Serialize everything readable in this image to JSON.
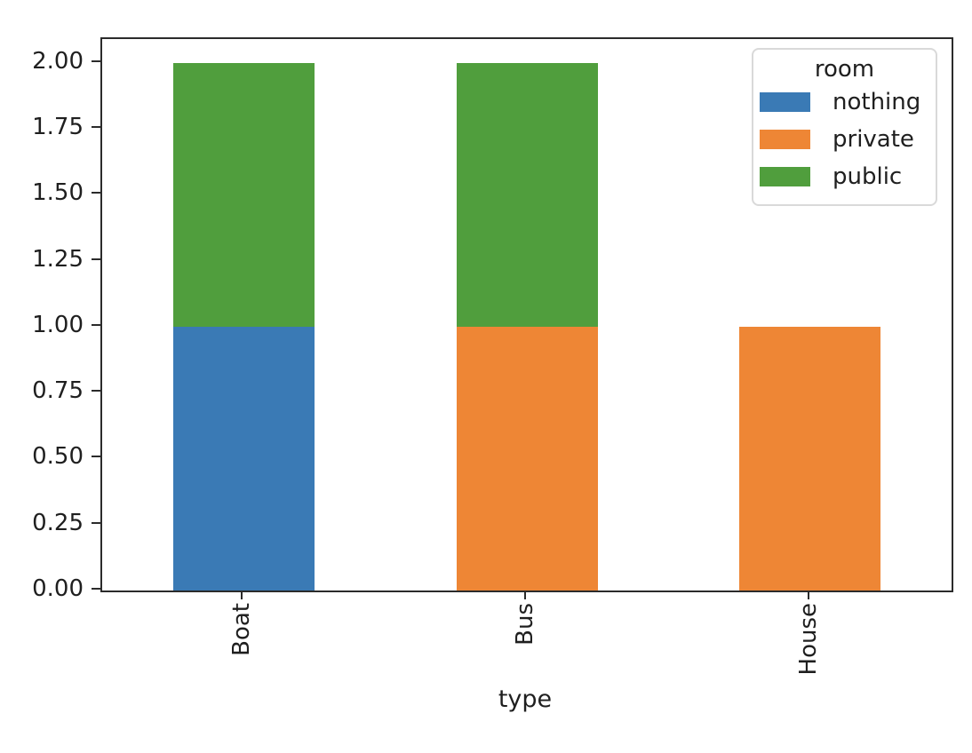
{
  "chart_data": {
    "type": "bar",
    "stacked": true,
    "orientation": "vertical",
    "title": "",
    "xlabel": "type",
    "ylabel": "",
    "categories": [
      "Boat",
      "Bus",
      "House"
    ],
    "series": [
      {
        "name": "nothing",
        "color": "#3a7ab5",
        "values": [
          1,
          0,
          0
        ]
      },
      {
        "name": "private",
        "color": "#ee8635",
        "values": [
          0,
          1,
          1
        ]
      },
      {
        "name": "public",
        "color": "#509e3d",
        "values": [
          1,
          1,
          0
        ]
      }
    ],
    "ylim": [
      0,
      2.09
    ],
    "yticks": [
      0.0,
      0.25,
      0.5,
      0.75,
      1.0,
      1.25,
      1.5,
      1.75,
      2.0
    ],
    "ytick_labels": [
      "0.00",
      "0.25",
      "0.50",
      "0.75",
      "1.00",
      "1.25",
      "1.50",
      "1.75",
      "2.00"
    ],
    "bar_width_fraction": 0.5,
    "grid": false,
    "legend": {
      "title": "room",
      "position": "upper right",
      "entries": [
        "nothing",
        "private",
        "public"
      ]
    },
    "axis_color": "#2b2b2b",
    "background_color": "#ffffff"
  }
}
